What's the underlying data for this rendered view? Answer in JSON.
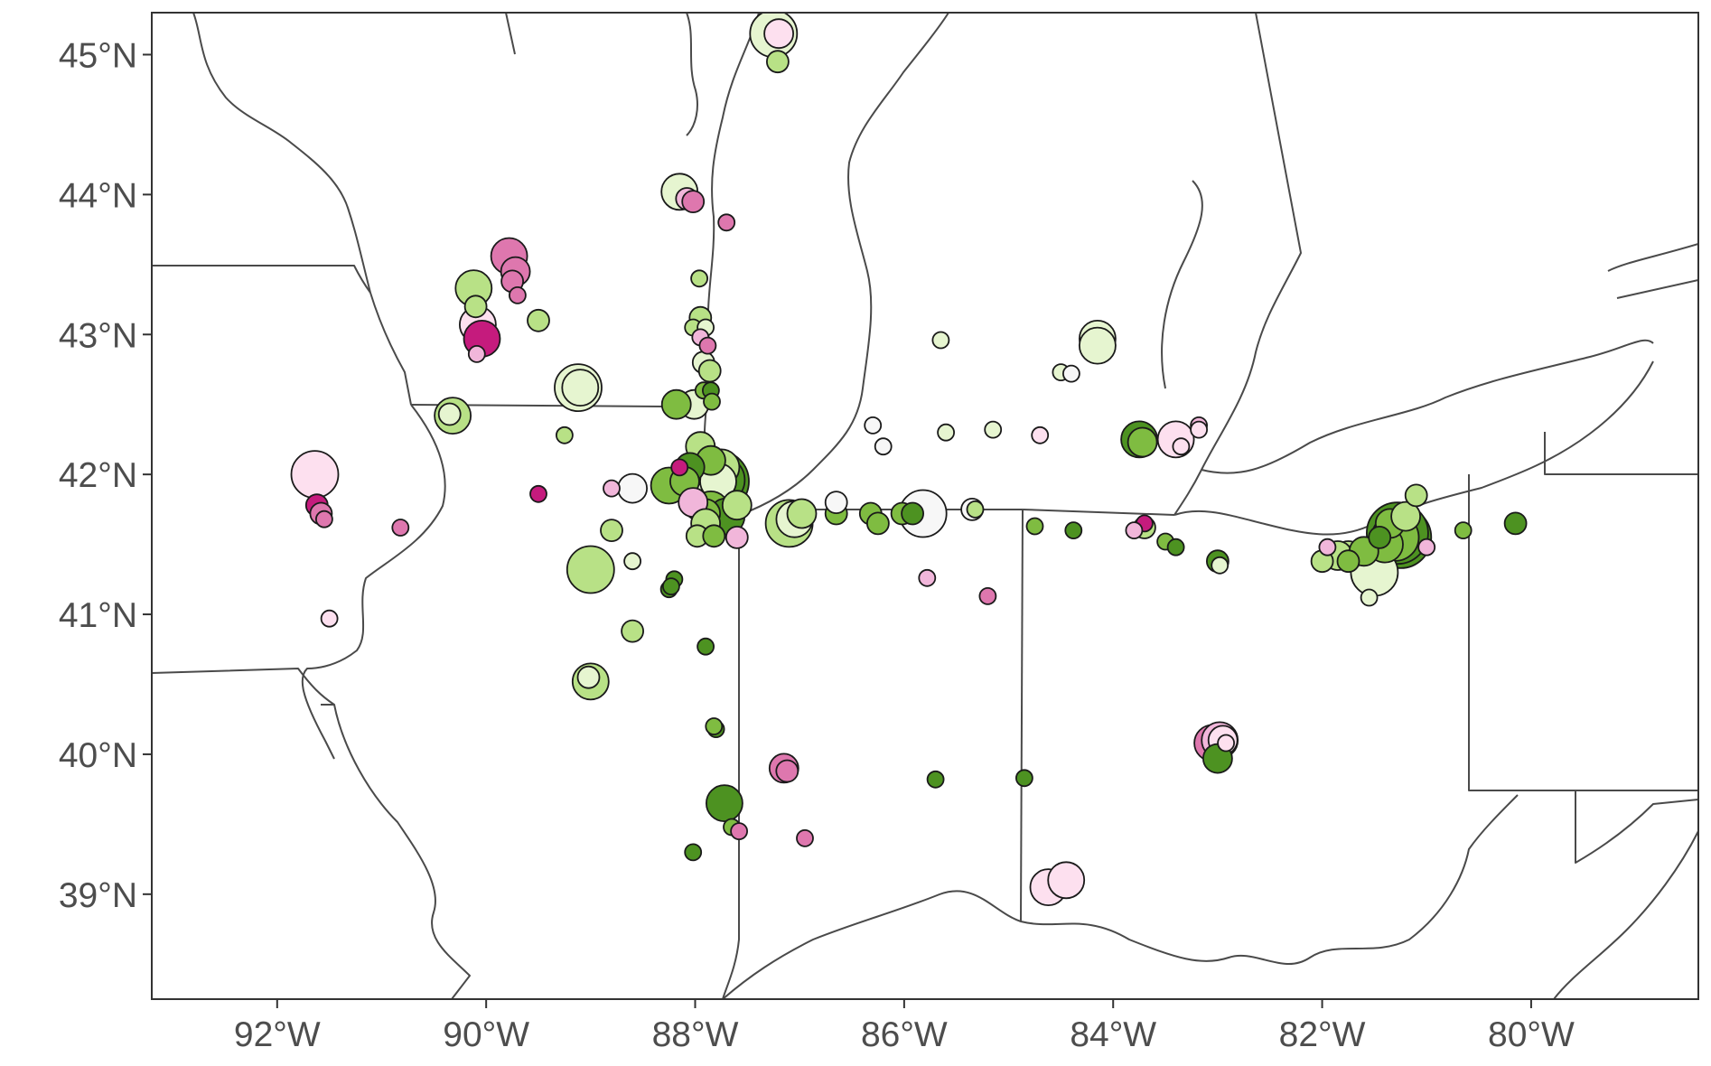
{
  "map": {
    "lon_range": [
      -93.2,
      -78.4
    ],
    "lat_range": [
      38.25,
      45.3
    ],
    "x_ticks": [
      {
        "value": -92,
        "label": "92°W"
      },
      {
        "value": -90,
        "label": "90°W"
      },
      {
        "value": -88,
        "label": "88°W"
      },
      {
        "value": -86,
        "label": "86°W"
      },
      {
        "value": -84,
        "label": "84°W"
      },
      {
        "value": -82,
        "label": "82°W"
      },
      {
        "value": -80,
        "label": "80°W"
      }
    ],
    "y_ticks": [
      {
        "value": 45,
        "label": "45°N"
      },
      {
        "value": 44,
        "label": "44°N"
      },
      {
        "value": 43,
        "label": "43°N"
      },
      {
        "value": 42,
        "label": "42°N"
      },
      {
        "value": 41,
        "label": "41°N"
      },
      {
        "value": 40,
        "label": "40°N"
      },
      {
        "value": 39,
        "label": "39°N"
      }
    ],
    "colors": {
      "c1": "#c51b7d",
      "c2": "#de77ae",
      "c3": "#f1b6da",
      "c4": "#fde0ef",
      "c5": "#f7f7f7",
      "c6": "#e6f5d0",
      "c7": "#b8e186",
      "c8": "#7fbc41",
      "c9": "#4d9221"
    },
    "sizes": [
      9,
      12,
      16,
      20,
      26,
      34
    ],
    "sites": [
      [
        -87.25,
        45.15,
        6,
        4
      ],
      [
        -87.2,
        45.15,
        4,
        2
      ],
      [
        -87.21,
        44.95,
        7,
        1
      ],
      [
        -88.15,
        44.02,
        6,
        3
      ],
      [
        -88.08,
        43.97,
        3,
        1
      ],
      [
        -88.02,
        43.95,
        2,
        1
      ],
      [
        -87.7,
        43.8,
        2,
        0
      ],
      [
        -89.78,
        43.56,
        2,
        3
      ],
      [
        -89.72,
        43.45,
        2,
        2
      ],
      [
        -89.75,
        43.38,
        2,
        1
      ],
      [
        -89.7,
        43.28,
        2,
        0
      ],
      [
        -90.12,
        43.33,
        7,
        3
      ],
      [
        -90.1,
        43.2,
        7,
        1
      ],
      [
        -89.5,
        43.1,
        7,
        1
      ],
      [
        -90.08,
        43.07,
        4,
        3
      ],
      [
        -90.04,
        42.97,
        1,
        3
      ],
      [
        -90.09,
        42.86,
        3,
        0
      ],
      [
        -87.96,
        43.4,
        7,
        0
      ],
      [
        -88.02,
        43.05,
        7,
        0
      ],
      [
        -87.95,
        43.12,
        7,
        1
      ],
      [
        -87.9,
        43.05,
        6,
        0
      ],
      [
        -87.95,
        42.98,
        3,
        0
      ],
      [
        -87.88,
        42.92,
        2,
        0
      ],
      [
        -87.92,
        42.8,
        6,
        1
      ],
      [
        -87.86,
        42.74,
        7,
        1
      ],
      [
        -87.92,
        42.6,
        8,
        0
      ],
      [
        -87.85,
        42.6,
        9,
        0
      ],
      [
        -87.84,
        42.52,
        8,
        0
      ],
      [
        -88.01,
        42.5,
        6,
        2
      ],
      [
        -88.18,
        42.5,
        8,
        2
      ],
      [
        -90.32,
        42.42,
        7,
        3
      ],
      [
        -90.35,
        42.43,
        6,
        1
      ],
      [
        -89.12,
        42.62,
        6,
        4
      ],
      [
        -89.1,
        42.62,
        6,
        3
      ],
      [
        -89.25,
        42.28,
        7,
        0
      ],
      [
        -91.64,
        42.0,
        4,
        4
      ],
      [
        -91.62,
        41.78,
        1,
        1
      ],
      [
        -91.58,
        41.72,
        2,
        1
      ],
      [
        -91.55,
        41.68,
        2,
        0
      ],
      [
        -90.82,
        41.62,
        2,
        0
      ],
      [
        -91.5,
        40.97,
        4,
        0
      ],
      [
        -89.5,
        41.86,
        1,
        0
      ],
      [
        -88.8,
        41.9,
        3,
        0
      ],
      [
        -88.6,
        41.9,
        5,
        2
      ],
      [
        -88.25,
        41.92,
        8,
        3
      ],
      [
        -88.15,
        42.05,
        1,
        0
      ],
      [
        -87.95,
        42.2,
        7,
        2
      ],
      [
        -87.85,
        42.1,
        8,
        2
      ],
      [
        -87.75,
        42.05,
        7,
        3
      ],
      [
        -88.05,
        42.05,
        9,
        2
      ],
      [
        -88.1,
        41.95,
        8,
        2
      ],
      [
        -87.92,
        41.95,
        7,
        3
      ],
      [
        -87.95,
        41.8,
        6,
        3
      ],
      [
        -87.78,
        41.95,
        9,
        5
      ],
      [
        -87.75,
        41.96,
        9,
        4
      ],
      [
        -87.78,
        41.95,
        6,
        3
      ],
      [
        -87.85,
        41.75,
        8,
        3
      ],
      [
        -87.7,
        41.7,
        9,
        3
      ],
      [
        -87.6,
        41.78,
        7,
        2
      ],
      [
        -87.9,
        41.72,
        8,
        2
      ],
      [
        -88.02,
        41.8,
        3,
        2
      ],
      [
        -87.9,
        41.65,
        7,
        2
      ],
      [
        -87.98,
        41.56,
        7,
        1
      ],
      [
        -87.82,
        41.56,
        8,
        1
      ],
      [
        -87.6,
        41.55,
        3,
        1
      ],
      [
        -87.1,
        41.65,
        7,
        4
      ],
      [
        -87.05,
        41.68,
        6,
        3
      ],
      [
        -86.98,
        41.72,
        7,
        2
      ],
      [
        -86.65,
        41.72,
        8,
        1
      ],
      [
        -86.65,
        41.8,
        5,
        1
      ],
      [
        -86.32,
        41.72,
        8,
        1
      ],
      [
        -86.25,
        41.65,
        8,
        1
      ],
      [
        -86.02,
        41.72,
        8,
        1
      ],
      [
        -85.92,
        41.72,
        9,
        1
      ],
      [
        -85.82,
        41.72,
        5,
        4
      ],
      [
        -85.35,
        41.75,
        5,
        1
      ],
      [
        -85.32,
        41.75,
        7,
        0
      ],
      [
        -84.75,
        41.63,
        8,
        0
      ],
      [
        -84.38,
        41.6,
        9,
        0
      ],
      [
        -86.3,
        42.35,
        5,
        0
      ],
      [
        -86.2,
        42.2,
        5,
        0
      ],
      [
        -85.6,
        42.3,
        6,
        0
      ],
      [
        -85.15,
        42.32,
        6,
        0
      ],
      [
        -84.7,
        42.28,
        4,
        0
      ],
      [
        -85.65,
        42.96,
        6,
        0
      ],
      [
        -84.5,
        42.73,
        6,
        0
      ],
      [
        -84.4,
        42.72,
        5,
        0
      ],
      [
        -84.15,
        42.97,
        6,
        3
      ],
      [
        -84.15,
        42.92,
        6,
        3
      ],
      [
        -83.75,
        42.25,
        9,
        3
      ],
      [
        -83.72,
        42.23,
        8,
        2
      ],
      [
        -83.4,
        42.25,
        4,
        3
      ],
      [
        -83.35,
        42.2,
        4,
        0
      ],
      [
        -83.18,
        42.35,
        3,
        0
      ],
      [
        -83.18,
        42.32,
        4,
        0
      ],
      [
        -83.7,
        41.65,
        1,
        0
      ],
      [
        -83.8,
        41.6,
        3,
        0
      ],
      [
        -83.7,
        41.62,
        7,
        1
      ],
      [
        -83.5,
        41.52,
        8,
        0
      ],
      [
        -83.4,
        41.48,
        9,
        0
      ],
      [
        -83.0,
        41.38,
        9,
        1
      ],
      [
        -82.98,
        41.35,
        6,
        0
      ],
      [
        -82.0,
        41.38,
        7,
        1
      ],
      [
        -81.95,
        41.48,
        3,
        0
      ],
      [
        -81.75,
        41.42,
        7,
        2
      ],
      [
        -81.85,
        41.42,
        7,
        2
      ],
      [
        -81.75,
        41.38,
        8,
        1
      ],
      [
        -81.6,
        41.45,
        8,
        2
      ],
      [
        -81.4,
        41.5,
        8,
        3
      ],
      [
        -81.3,
        41.55,
        8,
        4
      ],
      [
        -81.25,
        41.55,
        9,
        5
      ],
      [
        -81.28,
        41.58,
        9,
        5
      ],
      [
        -81.35,
        41.65,
        8,
        2
      ],
      [
        -81.2,
        41.7,
        7,
        2
      ],
      [
        -81.1,
        41.85,
        7,
        1
      ],
      [
        -81.0,
        41.48,
        3,
        0
      ],
      [
        -81.5,
        41.3,
        6,
        4
      ],
      [
        -81.55,
        41.12,
        6,
        0
      ],
      [
        -81.45,
        41.55,
        9,
        1
      ],
      [
        -80.65,
        41.6,
        8,
        0
      ],
      [
        -80.15,
        41.65,
        9,
        1
      ],
      [
        -88.8,
        41.6,
        7,
        1
      ],
      [
        -89.0,
        41.32,
        7,
        4
      ],
      [
        -88.6,
        41.38,
        6,
        0
      ],
      [
        -88.6,
        40.88,
        7,
        1
      ],
      [
        -89.0,
        40.52,
        7,
        3
      ],
      [
        -89.02,
        40.55,
        6,
        1
      ],
      [
        -88.2,
        41.25,
        9,
        0
      ],
      [
        -88.25,
        41.18,
        9,
        0
      ],
      [
        -88.23,
        41.2,
        9,
        0
      ],
      [
        -87.9,
        40.77,
        9,
        0
      ],
      [
        -87.8,
        40.18,
        9,
        0
      ],
      [
        -87.82,
        40.2,
        8,
        0
      ],
      [
        -87.72,
        39.65,
        9,
        3
      ],
      [
        -87.65,
        39.48,
        8,
        0
      ],
      [
        -87.58,
        39.45,
        2,
        0
      ],
      [
        -87.15,
        39.9,
        2,
        2
      ],
      [
        -87.12,
        39.88,
        2,
        1
      ],
      [
        -86.95,
        39.4,
        2,
        0
      ],
      [
        -88.02,
        39.3,
        9,
        0
      ],
      [
        -85.78,
        41.26,
        3,
        0
      ],
      [
        -85.2,
        41.13,
        2,
        0
      ],
      [
        -85.7,
        39.82,
        9,
        0
      ],
      [
        -84.85,
        39.83,
        9,
        0
      ],
      [
        -83.05,
        40.08,
        2,
        3
      ],
      [
        -82.98,
        40.1,
        3,
        3
      ],
      [
        -82.95,
        40.1,
        4,
        2
      ],
      [
        -82.92,
        40.08,
        4,
        0
      ],
      [
        -83.0,
        39.97,
        9,
        2
      ],
      [
        -84.62,
        39.05,
        4,
        3
      ],
      [
        -84.45,
        39.1,
        4,
        3
      ]
    ]
  }
}
